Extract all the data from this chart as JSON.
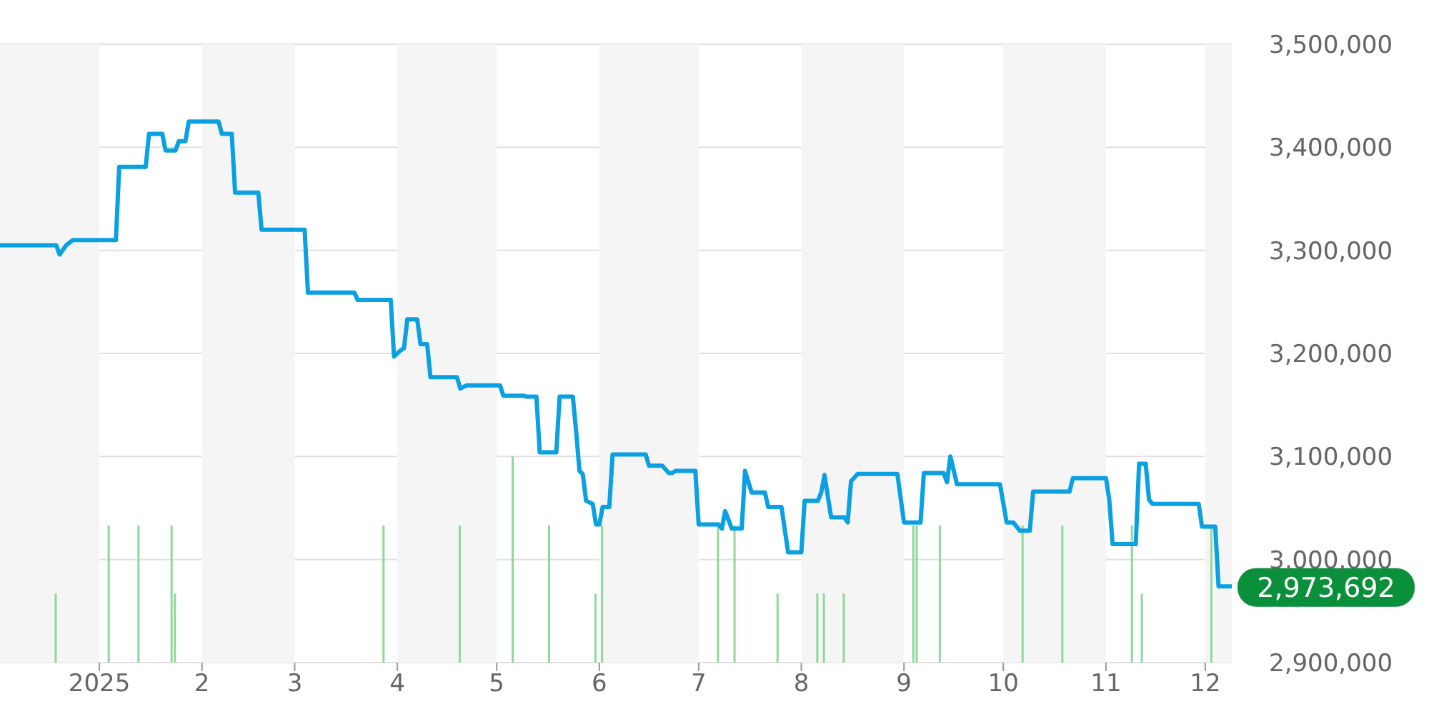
{
  "chart_data": {
    "type": "line",
    "grid": "y",
    "marker": "none",
    "line_style": "solid",
    "xlim": [
      "2024-12-02",
      "2025-12-09"
    ],
    "xticks": [
      {
        "value": "2025-01-01",
        "label": "2025"
      },
      {
        "value": "2025-02-01",
        "label": "2"
      },
      {
        "value": "2025-03-01",
        "label": "3"
      },
      {
        "value": "2025-04-01",
        "label": "4"
      },
      {
        "value": "2025-05-01",
        "label": "5"
      },
      {
        "value": "2025-06-01",
        "label": "6"
      },
      {
        "value": "2025-07-01",
        "label": "7"
      },
      {
        "value": "2025-08-01",
        "label": "8"
      },
      {
        "value": "2025-09-01",
        "label": "9"
      },
      {
        "value": "2025-10-01",
        "label": "10"
      },
      {
        "value": "2025-11-01",
        "label": "11"
      },
      {
        "value": "2025-12-01",
        "label": "12"
      }
    ],
    "ylim": [
      2900000,
      3500000
    ],
    "yticks": [
      {
        "value": 2900000,
        "label": "2,900,000"
      },
      {
        "value": 3000000,
        "label": "3,000,000"
      },
      {
        "value": 3100000,
        "label": "3,100,000"
      },
      {
        "value": 3200000,
        "label": "3,200,000"
      },
      {
        "value": 3300000,
        "label": "3,300,000"
      },
      {
        "value": 3400000,
        "label": "3,400,000"
      },
      {
        "value": 3500000,
        "label": "3,500,000"
      }
    ],
    "bands": [
      {
        "axis": "x",
        "from": "2024-12-02",
        "to": "2025-01-01",
        "color": "#f5f5f5"
      },
      {
        "axis": "x",
        "from": "2025-02-01",
        "to": "2025-03-01",
        "color": "#f5f5f5"
      },
      {
        "axis": "x",
        "from": "2025-04-01",
        "to": "2025-05-01",
        "color": "#f5f5f5"
      },
      {
        "axis": "x",
        "from": "2025-06-01",
        "to": "2025-07-01",
        "color": "#f5f5f5"
      },
      {
        "axis": "x",
        "from": "2025-08-01",
        "to": "2025-09-01",
        "color": "#f5f5f5"
      },
      {
        "axis": "x",
        "from": "2025-10-01",
        "to": "2025-11-01",
        "color": "#f5f5f5"
      },
      {
        "axis": "x",
        "from": "2025-12-01",
        "to": "2025-12-09",
        "color": "#f5f5f5"
      }
    ],
    "annotations": [
      {
        "text": "2,973,692",
        "x": "2025-12-09",
        "y": 2973692
      }
    ],
    "series": [
      {
        "type": "bar",
        "color": "#8fd89a",
        "x": [
          "2024-12-19",
          "2025-01-04",
          "2025-01-13",
          "2025-01-23",
          "2025-01-24",
          "2025-03-28",
          "2025-04-20",
          "2025-05-06",
          "2025-05-17",
          "2025-05-31",
          "2025-06-02",
          "2025-07-07",
          "2025-07-12",
          "2025-07-25",
          "2025-08-06",
          "2025-08-08",
          "2025-08-14",
          "2025-09-04",
          "2025-09-05",
          "2025-09-12",
          "2025-10-07",
          "2025-10-19",
          "2025-11-09",
          "2025-11-12",
          "2025-12-03"
        ],
        "values": [
          2967000,
          3033000,
          3033000,
          3033000,
          2967000,
          3033000,
          3033000,
          3100000,
          3033000,
          2967000,
          3033000,
          3033000,
          3033000,
          2967000,
          2967000,
          2967000,
          2967000,
          3033000,
          3033000,
          3033000,
          3033000,
          3033000,
          3033000,
          2967000,
          3033000
        ]
      },
      {
        "color": "#0aa0e2",
        "x": [
          "2024-12-02",
          "2024-12-19",
          "2024-12-20",
          "2024-12-22",
          "2024-12-24",
          "2025-01-06",
          "2025-01-07",
          "2025-01-15",
          "2025-01-16",
          "2025-01-20",
          "2025-01-21",
          "2025-01-24",
          "2025-01-25",
          "2025-01-27",
          "2025-01-28",
          "2025-02-06",
          "2025-02-07",
          "2025-02-10",
          "2025-02-11",
          "2025-02-18",
          "2025-02-19",
          "2025-03-04",
          "2025-03-05",
          "2025-03-19",
          "2025-03-20",
          "2025-03-30",
          "2025-03-31",
          "2025-04-02",
          "2025-04-03",
          "2025-04-04",
          "2025-04-07",
          "2025-04-08",
          "2025-04-10",
          "2025-04-11",
          "2025-04-19",
          "2025-04-20",
          "2025-04-22",
          "2025-04-23",
          "2025-05-02",
          "2025-05-03",
          "2025-05-09",
          "2025-05-10",
          "2025-05-13",
          "2025-05-14",
          "2025-05-19",
          "2025-05-20",
          "2025-05-24",
          "2025-05-25",
          "2025-05-26",
          "2025-05-27",
          "2025-05-28",
          "2025-05-30",
          "2025-05-31",
          "2025-06-01",
          "2025-06-02",
          "2025-06-04",
          "2025-06-05",
          "2025-06-15",
          "2025-06-16",
          "2025-06-20",
          "2025-06-22",
          "2025-06-23",
          "2025-06-24",
          "2025-06-30",
          "2025-07-01",
          "2025-07-07",
          "2025-07-08",
          "2025-07-09",
          "2025-07-11",
          "2025-07-14",
          "2025-07-15",
          "2025-07-17",
          "2025-07-21",
          "2025-07-22",
          "2025-07-26",
          "2025-07-28",
          "2025-08-01",
          "2025-08-02",
          "2025-08-06",
          "2025-08-07",
          "2025-08-08",
          "2025-08-10",
          "2025-08-14",
          "2025-08-15",
          "2025-08-16",
          "2025-08-18",
          "2025-08-30",
          "2025-09-01",
          "2025-09-06",
          "2025-09-07",
          "2025-09-13",
          "2025-09-14",
          "2025-09-15",
          "2025-09-17",
          "2025-09-30",
          "2025-10-02",
          "2025-10-04",
          "2025-10-06",
          "2025-10-09",
          "2025-10-10",
          "2025-10-21",
          "2025-10-22",
          "2025-11-01",
          "2025-11-02",
          "2025-11-03",
          "2025-11-10",
          "2025-11-11",
          "2025-11-13",
          "2025-11-14",
          "2025-11-15",
          "2025-11-29",
          "2025-11-30",
          "2025-12-04",
          "2025-12-05",
          "2025-12-09"
        ],
        "values": [
          3305000,
          3305000,
          3296000,
          3305000,
          3310000,
          3310000,
          3381000,
          3381000,
          3413000,
          3413000,
          3397000,
          3397000,
          3406000,
          3406000,
          3425000,
          3425000,
          3413000,
          3413000,
          3356000,
          3356000,
          3320000,
          3320000,
          3259000,
          3259000,
          3252000,
          3252000,
          3197000,
          3203000,
          3205000,
          3233000,
          3233000,
          3209000,
          3209000,
          3177000,
          3177000,
          3166000,
          3169000,
          3169000,
          3169000,
          3159000,
          3159000,
          3158000,
          3158000,
          3104000,
          3104000,
          3158000,
          3158000,
          3124000,
          3086000,
          3083000,
          3057000,
          3054000,
          3034000,
          3034000,
          3051000,
          3051000,
          3102000,
          3102000,
          3091000,
          3091000,
          3084000,
          3084000,
          3086000,
          3086000,
          3034000,
          3034000,
          3030000,
          3047000,
          3030000,
          3030000,
          3086000,
          3065000,
          3065000,
          3051000,
          3051000,
          3007000,
          3007000,
          3057000,
          3057000,
          3065000,
          3082000,
          3041000,
          3041000,
          3036000,
          3076000,
          3083000,
          3083000,
          3036000,
          3036000,
          3084000,
          3084000,
          3075000,
          3100000,
          3073000,
          3073000,
          3036000,
          3036000,
          3028000,
          3028000,
          3066000,
          3066000,
          3079000,
          3079000,
          3058000,
          3015000,
          3015000,
          3093000,
          3093000,
          3058000,
          3054000,
          3054000,
          3032000,
          3032000,
          2974000,
          2974000
        ]
      }
    ]
  }
}
